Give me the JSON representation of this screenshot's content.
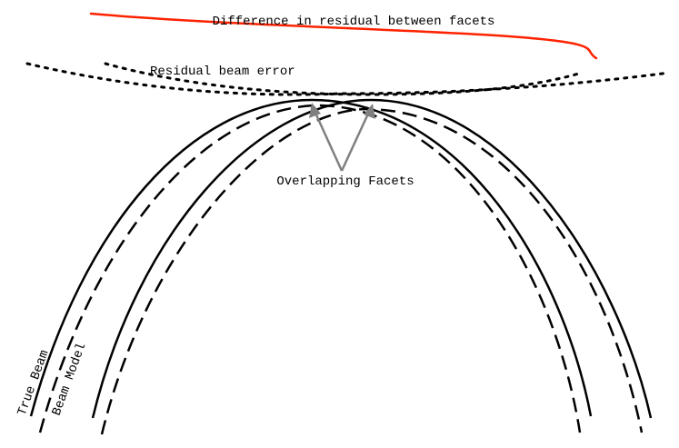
{
  "labels": {
    "difference": "Difference in residual between facets",
    "residual": "Residual beam error",
    "facets": "Overlapping Facets",
    "true_beam": "True Beam",
    "beam_model": "Beam Model"
  },
  "colors": {
    "curve": "#000000",
    "arrow": "#808080",
    "difference_line": "#ff2200",
    "background": "#ffffff"
  },
  "legend": {
    "solid": "True Beam",
    "dashed": "Beam Model"
  }
}
